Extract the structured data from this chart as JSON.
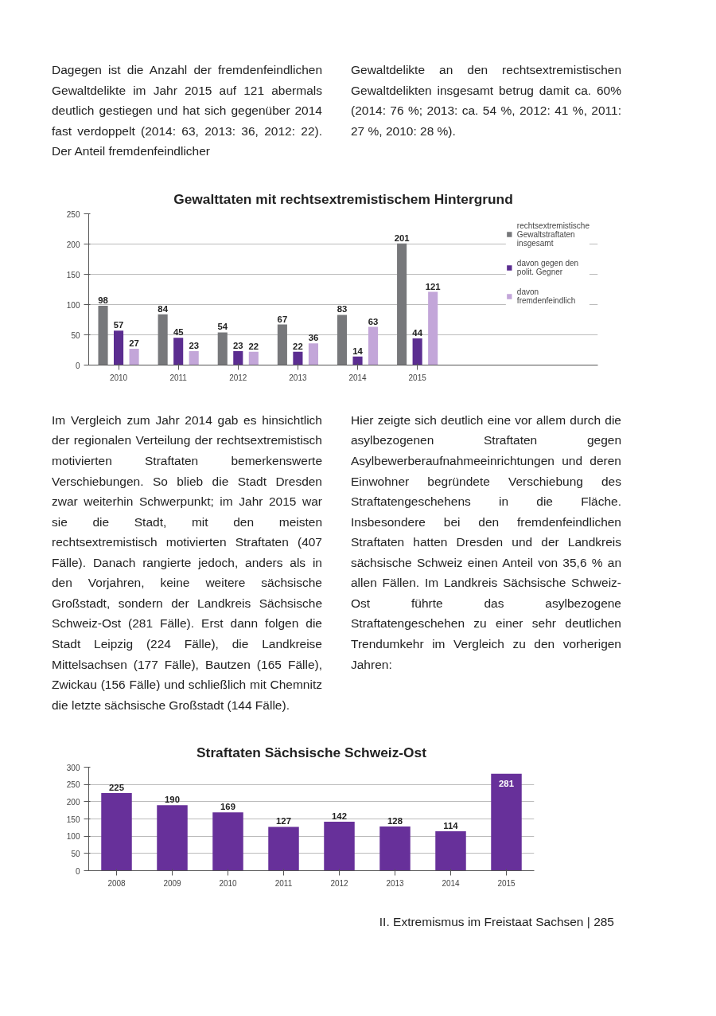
{
  "chart_data": [
    {
      "type": "bar",
      "title": "Gewalttaten mit rechtsextremistischem Hintergrund",
      "categories": [
        "2010",
        "2011",
        "2012",
        "2013",
        "2014",
        "2015"
      ],
      "series": [
        {
          "name": "rechtsextremistische Gewaltstraftaten insgesamt",
          "color": "#77787b",
          "values": [
            98,
            84,
            54,
            67,
            83,
            201
          ]
        },
        {
          "name": "davon gegen den polit. Gegner",
          "color": "#5b2d90",
          "values": [
            57,
            45,
            23,
            22,
            14,
            44
          ]
        },
        {
          "name": "davon fremdenfeindlich",
          "color": "#c3a6d9",
          "values": [
            27,
            23,
            22,
            36,
            63,
            121
          ]
        }
      ],
      "ylim": [
        0,
        250
      ],
      "yticks": [
        0,
        50,
        100,
        150,
        200,
        250
      ],
      "grid": "y",
      "legend": "right",
      "data_labels": true,
      "annotations": [
        "Dagegen ist die Anzahl der fremdenfeindlichen Gewaltdelikte im Jahr 2015 auf 121 abermals deutlich gestiegen und hat sich gegenüber 2014 fast verdoppelt (2014: 63, 2013: 36, 2012: 22). Der Anteil fremdenfeindlicher",
        "Gewaltdelikte an den rechtsextremistischen Gewaltdelikten insgesamt betrug damit ca. 60% (2014: 76 %; 2013: ca. 54 %, 2012: 41 %, 2011: 27 %, 2010: 28 %)."
      ]
    },
    {
      "type": "bar",
      "title": "Straftaten Sächsische Schweiz-Ost",
      "categories": [
        "2008",
        "2009",
        "2010",
        "2011",
        "2012",
        "2013",
        "2014",
        "2015"
      ],
      "values": [
        225,
        190,
        169,
        127,
        142,
        128,
        114,
        281
      ],
      "color": "#67309a",
      "ylim": [
        0,
        300
      ],
      "yticks": [
        0,
        50,
        100,
        150,
        200,
        250,
        300
      ],
      "grid": "y",
      "data_labels": true,
      "annotations": [
        "Im Vergleich zum Jahr 2014 gab es hinsichtlich der regionalen Verteilung der rechtsextremistisch motivierten Straftaten bemerkenswerte Verschiebungen. So blieb die Stadt Dresden zwar weiterhin Schwerpunkt; im Jahr 2015 war sie die Stadt, mit den meisten rechtsextremistisch motivierten Straftaten (407 Fälle). Danach rangierte jedoch, anders als in den Vorjahren, keine weitere sächsische Großstadt, sondern der Landkreis Sächsische Schweiz-Ost (281 Fälle). Erst dann folgen die Stadt Leipzig (224 Fälle), die Landkreise Mittelsachsen (177 Fälle), Bautzen (165 Fälle), Zwickau (156 Fälle) und schließlich mit Chemnitz die letzte sächsische Großstadt (144 Fälle).",
        "Hier zeigte sich deutlich eine vor allem durch die asylbezogenen Straftaten gegen Asylbewerberaufnahmeeinrichtungen und deren Einwohner begründete Verschiebung des Straftatengeschehens in die Fläche. Insbesondere bei den fremdenfeindlichen Straftaten hatten Dresden und der Landkreis sächsische Schweiz einen Anteil von 35,6 % an allen Fällen. Im Landkreis Sächsische Schweiz-Ost führte das asylbezogene Straftatengeschehen zu einer sehr deutlichen Trendumkehr im Vergleich zu den vorherigen Jahren:",
        "II. Extremismus im Freistaat Sachsen | 285"
      ]
    }
  ]
}
